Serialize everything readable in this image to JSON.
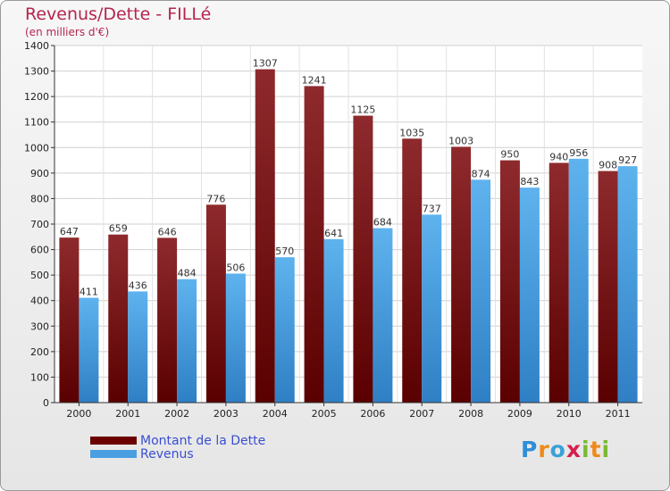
{
  "header": {
    "title": "Revenus/Dette - FILLé",
    "subtitle": "(en milliers d'€)"
  },
  "chart_data": {
    "type": "bar",
    "title": "Revenus/Dette - FILLé",
    "subtitle": "(en milliers d'€)",
    "xlabel": "",
    "ylabel": "",
    "ylim": [
      0,
      1400
    ],
    "yticks": [
      0,
      100,
      200,
      300,
      400,
      500,
      600,
      700,
      800,
      900,
      1000,
      1100,
      1200,
      1300,
      1400
    ],
    "grid": true,
    "legend_position": "bottom-left",
    "categories": [
      "2000",
      "2001",
      "2002",
      "2003",
      "2004",
      "2005",
      "2006",
      "2007",
      "2008",
      "2009",
      "2010",
      "2011"
    ],
    "series": [
      {
        "name": "Montant de la Dette",
        "color": "#7a0f12",
        "values": [
          647,
          659,
          646,
          776,
          1307,
          1241,
          1125,
          1035,
          1003,
          950,
          940,
          908
        ]
      },
      {
        "name": "Revenus",
        "color": "#4aa3e6",
        "values": [
          411,
          436,
          484,
          506,
          570,
          641,
          684,
          737,
          874,
          843,
          956,
          927
        ]
      }
    ]
  },
  "legend": {
    "items": [
      {
        "label": "Montant de la Dette",
        "color": "#6b0000"
      },
      {
        "label": "Revenus",
        "color": "#4a9fe0"
      }
    ]
  },
  "logo": {
    "letters": [
      {
        "ch": "P",
        "color": "#2f8fd6"
      },
      {
        "ch": "r",
        "color": "#ef8a1a"
      },
      {
        "ch": "o",
        "color": "#3aa0d8"
      },
      {
        "ch": "x",
        "color": "#d81e4e"
      },
      {
        "ch": "i",
        "color": "#7ab932"
      },
      {
        "ch": "t",
        "color": "#ef8a1a"
      },
      {
        "ch": "i",
        "color": "#7ab932"
      }
    ]
  }
}
